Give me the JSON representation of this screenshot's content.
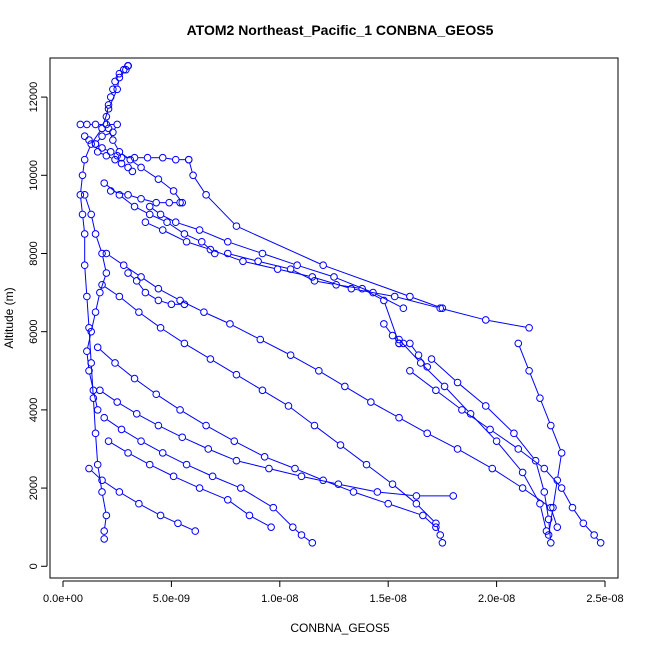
{
  "chart_data": {
    "type": "scatter",
    "title": "ATOM2 Northeast_Pacific_1 CONBNA_GEOS5",
    "xlabel": "CONBNA_GEOS5",
    "ylabel": "Altitude (m)",
    "xlim": [
      -6e-10,
      2.56e-08
    ],
    "ylim": [
      -300,
      13000
    ],
    "x_ticks": [
      0,
      5e-09,
      1e-08,
      1.5e-08,
      2e-08,
      2.5e-08
    ],
    "x_tick_labels": [
      "0.0e+00",
      "5.0e-09",
      "1.0e-08",
      "1.5e-08",
      "2.0e-08",
      "2.5e-08"
    ],
    "y_ticks": [
      0,
      2000,
      4000,
      6000,
      8000,
      10000,
      12000
    ],
    "y_tick_labels": [
      "0",
      "2000",
      "4000",
      "6000",
      "8000",
      "10000",
      "12000"
    ],
    "grid": false,
    "series_color": "#0000ff",
    "series": [
      {
        "x": [
          1.9e-09,
          1.9e-09,
          2e-09,
          1.8e-09,
          1.6e-09,
          1.5e-09,
          1.4e-09,
          1.3e-09,
          1.2e-09,
          1.1e-09,
          1e-09,
          1e-09,
          9e-10,
          8e-10,
          9e-10,
          1e-09,
          1.3e-09,
          1.8e-09,
          2.1e-09,
          2.5e-09,
          2.6e-09,
          2.8e-09,
          3e-09,
          3e-09
        ],
        "y": [
          700,
          900,
          1300,
          1900,
          2600,
          3400,
          4300,
          5200,
          6100,
          6900,
          7700,
          8500,
          9000,
          9500,
          10000,
          10400,
          10800,
          11200,
          11700,
          12200,
          12500,
          12700,
          12800,
          12800
        ]
      },
      {
        "x": [
          3e-09,
          2.9e-09,
          2.6e-09,
          2.4e-09,
          2.3e-09,
          2.2e-09,
          2.1e-09,
          2e-09,
          2.1e-09,
          2.3e-09,
          2.6e-09,
          3.1e-09,
          3.6e-09,
          4.4e-09,
          5.1e-09,
          5.5e-09
        ],
        "y": [
          12800,
          12700,
          12600,
          12400,
          12200,
          12000,
          11800,
          11500,
          11200,
          10900,
          10600,
          10400,
          10200,
          9900,
          9600,
          9300
        ]
      },
      {
        "x": [
          8e-10,
          1.1e-09,
          1.5e-09,
          2e-09,
          2.5e-09,
          2.3e-09,
          1.8e-09,
          1.5e-09,
          1.6e-09,
          2e-09,
          2.4e-09,
          2.7e-09,
          3e-09,
          3.2e-09
        ],
        "y": [
          11300,
          11300,
          11300,
          11300,
          11300,
          11100,
          11000,
          10800,
          10600,
          10500,
          10400,
          10300,
          10200,
          10100
        ]
      },
      {
        "x": [
          1e-09,
          1.2e-09,
          1.5e-09,
          1.8e-09,
          2.2e-09,
          2.5e-09,
          2.7e-09,
          3.3e-09,
          3.9e-09,
          4.6e-09,
          5.2e-09,
          5.8e-09
        ],
        "y": [
          11000,
          10900,
          10800,
          10700,
          10600,
          10500,
          10450,
          10450,
          10450,
          10450,
          10400,
          10400
        ]
      },
      {
        "x": [
          5.8e-09,
          6e-09,
          6.6e-09,
          8e-09,
          1.2e-08,
          1.6e-08,
          1.75e-08
        ],
        "y": [
          10400,
          10000,
          9500,
          8700,
          7700,
          6900,
          6600
        ]
      },
      {
        "x": [
          4e-09,
          4.5e-09,
          5.2e-09,
          6.3e-09,
          7.6e-09,
          9.2e-09,
          1.08e-08,
          1.25e-08,
          1.43e-08,
          1.57e-08
        ],
        "y": [
          9200,
          9000,
          8800,
          8600,
          8300,
          8000,
          7700,
          7400,
          7000,
          6600
        ]
      },
      {
        "x": [
          3.8e-09,
          4.6e-09,
          5.7e-09,
          6.8e-09,
          8.3e-09,
          9.9e-09,
          1.15e-08,
          1.33e-08,
          1.53e-08,
          1.74e-08,
          1.95e-08,
          2.15e-08
        ],
        "y": [
          8800,
          8600,
          8300,
          8100,
          7800,
          7600,
          7400,
          7100,
          6900,
          6600,
          6300,
          6100
        ]
      },
      {
        "x": [
          2e-09,
          2.8e-09,
          3.6e-09,
          4.4e-09,
          5.4e-09,
          6.5e-09,
          7.7e-09,
          9.1e-09,
          1.05e-08,
          1.18e-08,
          1.3e-08,
          1.42e-08,
          1.55e-08,
          1.68e-08,
          1.82e-08,
          1.98e-08,
          2.12e-08,
          2.25e-08,
          2.28e-08
        ],
        "y": [
          8000,
          7700,
          7400,
          7100,
          6800,
          6500,
          6200,
          5800,
          5400,
          5000,
          4600,
          4200,
          3800,
          3400,
          3000,
          2500,
          2000,
          1500,
          1000
        ]
      },
      {
        "x": [
          1.8e-09,
          2.6e-09,
          3.5e-09,
          4.5e-09,
          5.6e-09,
          6.8e-09,
          8e-09,
          9.2e-09,
          1.04e-08,
          1.16e-08,
          1.28e-08,
          1.4e-08,
          1.52e-08,
          1.63e-08,
          1.72e-08,
          1.74e-08,
          1.75e-08
        ],
        "y": [
          7200,
          6900,
          6500,
          6100,
          5700,
          5300,
          4900,
          4500,
          4100,
          3600,
          3100,
          2600,
          2100,
          1600,
          1100,
          800,
          600
        ]
      },
      {
        "x": [
          1.6e-09,
          2.4e-09,
          3.3e-09,
          4.3e-09,
          5.4e-09,
          6.6e-09,
          7.9e-09,
          9.3e-09,
          1.07e-08,
          1.2e-08,
          1.34e-08,
          1.5e-08,
          1.66e-08,
          1.72e-08
        ],
        "y": [
          5600,
          5200,
          4800,
          4400,
          4000,
          3600,
          3200,
          2800,
          2500,
          2200,
          1900,
          1600,
          1300,
          1000
        ]
      },
      {
        "x": [
          1.7e-09,
          2.5e-09,
          3.4e-09,
          4.4e-09,
          5.5e-09,
          6.7e-09,
          8e-09,
          9.5e-09,
          1.1e-08,
          1.27e-08,
          1.45e-08,
          1.63e-08,
          1.8e-08
        ],
        "y": [
          4500,
          4200,
          3900,
          3600,
          3300,
          3000,
          2700,
          2500,
          2300,
          2100,
          1900,
          1800,
          1800
        ]
      },
      {
        "x": [
          1.9e-09,
          2.7e-09,
          3.6e-09,
          4.6e-09,
          5.7e-09,
          6.9e-09,
          8.2e-09,
          9.7e-09,
          1.06e-08,
          1.1e-08,
          1.15e-08
        ],
        "y": [
          3800,
          3500,
          3200,
          2900,
          2600,
          2300,
          2000,
          1500,
          1000,
          800,
          600
        ]
      },
      {
        "x": [
          2.1e-09,
          3e-09,
          4e-09,
          5.1e-09,
          6.3e-09,
          7.6e-09,
          8.6e-09,
          9.6e-09
        ],
        "y": [
          3200,
          2900,
          2600,
          2300,
          2000,
          1700,
          1300,
          1000
        ]
      },
      {
        "x": [
          1.2e-09,
          1.8e-09,
          2.6e-09,
          3.5e-09,
          4.5e-09,
          5.3e-09,
          6.1e-09
        ],
        "y": [
          2500,
          2200,
          1900,
          1600,
          1300,
          1100,
          900
        ]
      },
      {
        "x": [
          1.7e-08,
          1.82e-08,
          1.95e-08,
          2.08e-08,
          2.18e-08,
          2.22e-08,
          2.24e-08,
          2.25e-08
        ],
        "y": [
          5300,
          4700,
          4100,
          3400,
          2700,
          1900,
          1200,
          600
        ]
      },
      {
        "x": [
          1.55e-08,
          1.65e-08,
          1.76e-08,
          1.88e-08,
          2e-08,
          2.12e-08,
          2.2e-08,
          2.23e-08
        ],
        "y": [
          5800,
          5200,
          4600,
          3900,
          3200,
          2400,
          1600,
          900
        ]
      },
      {
        "x": [
          1.6e-08,
          1.72e-08,
          1.84e-08,
          1.97e-08,
          2.1e-08,
          2.22e-08,
          2.3e-08,
          2.35e-08,
          2.4e-08,
          2.45e-08,
          2.48e-08
        ],
        "y": [
          5000,
          4500,
          4000,
          3500,
          3000,
          2500,
          2000,
          1500,
          1100,
          800,
          600
        ]
      },
      {
        "x": [
          2.1e-08,
          2.15e-08,
          2.2e-08,
          2.25e-08,
          2.3e-08,
          2.28e-08,
          2.26e-08,
          2.24e-08
        ],
        "y": [
          5700,
          5000,
          4300,
          3600,
          2900,
          2200,
          1500,
          800
        ]
      },
      {
        "x": [
          1.9e-09,
          2.6e-09,
          3.3e-09,
          4e-09,
          4.8e-09,
          5.6e-09,
          6.4e-09,
          7e-09
        ],
        "y": [
          9800,
          9500,
          9200,
          9000,
          8800,
          8500,
          8300,
          8000
        ]
      },
      {
        "x": [
          2.2e-09,
          3e-09,
          3.6e-09,
          4.3e-09,
          4.9e-09,
          5.4e-09
        ],
        "y": [
          9600,
          9500,
          9400,
          9300,
          9300,
          9300
        ]
      },
      {
        "x": [
          1e-09,
          1.3e-09,
          1.5e-09,
          1.8e-09,
          2e-09,
          1.7e-09,
          1.5e-09,
          1.3e-09,
          1.1e-09,
          1.2e-09,
          1.4e-09,
          1.6e-09
        ],
        "y": [
          9500,
          9000,
          8500,
          8000,
          7500,
          7000,
          6500,
          6000,
          5500,
          5000,
          4500,
          4000
        ]
      },
      {
        "x": [
          3e-09,
          3.4e-09,
          3.8e-09,
          4.4e-09,
          5e-09,
          5.6e-09
        ],
        "y": [
          7500,
          7300,
          7000,
          6800,
          6700,
          6700
        ]
      },
      {
        "x": [
          7.6e-09,
          9e-09,
          1.05e-08,
          1.16e-08,
          1.26e-08,
          1.38e-08,
          1.48e-08,
          1.55e-08
        ],
        "y": [
          8000,
          7800,
          7600,
          7300,
          7200,
          7100,
          6800,
          5700
        ]
      },
      {
        "x": [
          1.48e-08,
          1.52e-08,
          1.55e-08,
          1.57e-08,
          1.6e-08,
          1.64e-08,
          1.68e-08
        ],
        "y": [
          6200,
          5900,
          5700,
          5700,
          5700,
          5400,
          5100
        ]
      }
    ]
  }
}
